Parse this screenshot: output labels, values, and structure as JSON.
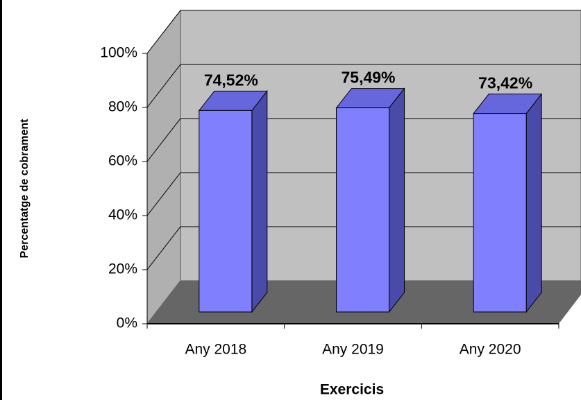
{
  "chart_data": {
    "type": "bar3d",
    "xlabel": "Exercicis",
    "ylabel": "Percentatge de cobrament",
    "categories": [
      "Any 2018",
      "Any 2019",
      "Any 2020"
    ],
    "values": [
      74.52,
      75.49,
      73.42
    ],
    "value_labels": [
      "74,52%",
      "75,49%",
      "73,42%"
    ],
    "color": "#8080ff",
    "ylim": [
      0,
      100
    ],
    "yticks": [
      {
        "value": 0,
        "label": "0%"
      },
      {
        "value": 20,
        "label": "20%"
      },
      {
        "value": 40,
        "label": "40%"
      },
      {
        "value": 60,
        "label": "60%"
      },
      {
        "value": 80,
        "label": "80%"
      },
      {
        "value": 100,
        "label": "100%"
      }
    ],
    "grid": true
  }
}
